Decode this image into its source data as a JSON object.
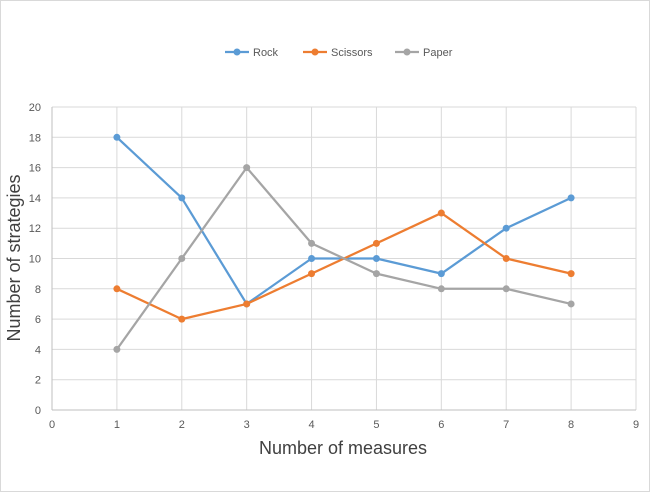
{
  "chart_data": {
    "type": "line",
    "xlabel": "Number of measures",
    "ylabel": "Number of strategies",
    "xlim": [
      0,
      9
    ],
    "ylim": [
      0,
      20
    ],
    "x_ticks": [
      "0",
      "1",
      "2",
      "3",
      "4",
      "5",
      "6",
      "7",
      "8",
      "9"
    ],
    "y_ticks": [
      "0",
      "2",
      "4",
      "6",
      "8",
      "10",
      "12",
      "14",
      "16",
      "18",
      "20"
    ],
    "grid": true,
    "legend_position": "top",
    "x": [
      1,
      2,
      3,
      4,
      5,
      6,
      7,
      8
    ],
    "series": [
      {
        "name": "Rock",
        "color": "#5b9bd5",
        "values": [
          18,
          14,
          7,
          10,
          10,
          9,
          12,
          14
        ]
      },
      {
        "name": "Scissors",
        "color": "#ed7d31",
        "values": [
          8,
          6,
          7,
          9,
          11,
          13,
          10,
          9
        ]
      },
      {
        "name": "Paper",
        "color": "#a5a5a5",
        "values": [
          4,
          10,
          16,
          11,
          9,
          8,
          8,
          7
        ]
      }
    ]
  }
}
